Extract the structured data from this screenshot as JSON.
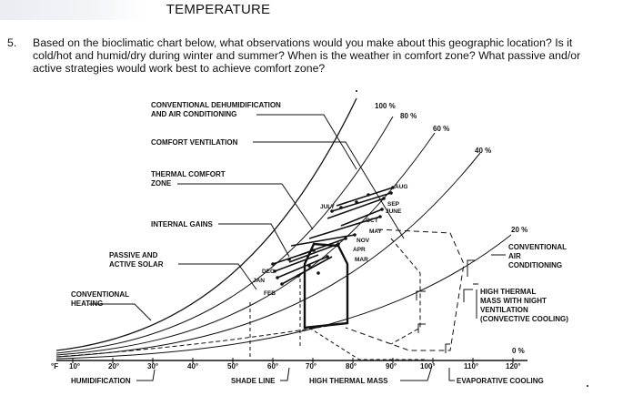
{
  "page": {
    "heading": "TEMPERATURE",
    "question_number": "5.",
    "question_text": "Based on the bioclimatic chart below, what observations would you make about this geographic location?  Is it cold/hot and humid/dry during winter and summer?  When is the weather in comfort zone?  What passive and/or active strategies would work best to achieve comfort zone?"
  },
  "chart": {
    "labels": {
      "dehum_1": "CONVENTIONAL DEHUMIDIFICATION",
      "dehum_2": "AND AIR CONDITIONING",
      "comfort_vent": "COMFORT VENTILATION",
      "thermal_1": "THERMAL COMFORT",
      "thermal_2": "ZONE",
      "internal_gains": "INTERNAL GAINS",
      "passive_1": "PASSIVE AND",
      "passive_2": "ACTIVE SOLAR",
      "conv_heat_1": "CONVENTIONAL",
      "conv_heat_2": "HEATING",
      "humidification": "HUMIDIFICATION",
      "shade_line": "SHADE LINE",
      "high_thermal_mass": "HIGH THERMAL MASS",
      "evap": "EVAPORATIVE COOLING",
      "conv_ac_1": "CONVENTIONAL",
      "conv_ac_2": "AIR",
      "conv_ac_3": "CONDITIONING",
      "htm_night_1": "HIGH THERMAL",
      "htm_night_2": "MASS WITH NIGHT",
      "htm_night_3": "VENTILATION",
      "htm_night_4": "(CONVECTIVE COOLING)"
    },
    "rh_labels": [
      "100 %",
      "80 %",
      "60 %",
      "40 %",
      "20 %",
      "0 %"
    ],
    "x_ticks": [
      "°F",
      "10°",
      "20°",
      "30°",
      "40°",
      "50°",
      "60°",
      "70°",
      "80°",
      "90°",
      "100°",
      "110°",
      "120°"
    ],
    "months": [
      "JAN",
      "FEB",
      "MAR",
      "APR",
      "MAY",
      "JUNE",
      "JULY",
      "AUG",
      "SEP",
      "OCT",
      "NOV",
      "DEC"
    ]
  }
}
